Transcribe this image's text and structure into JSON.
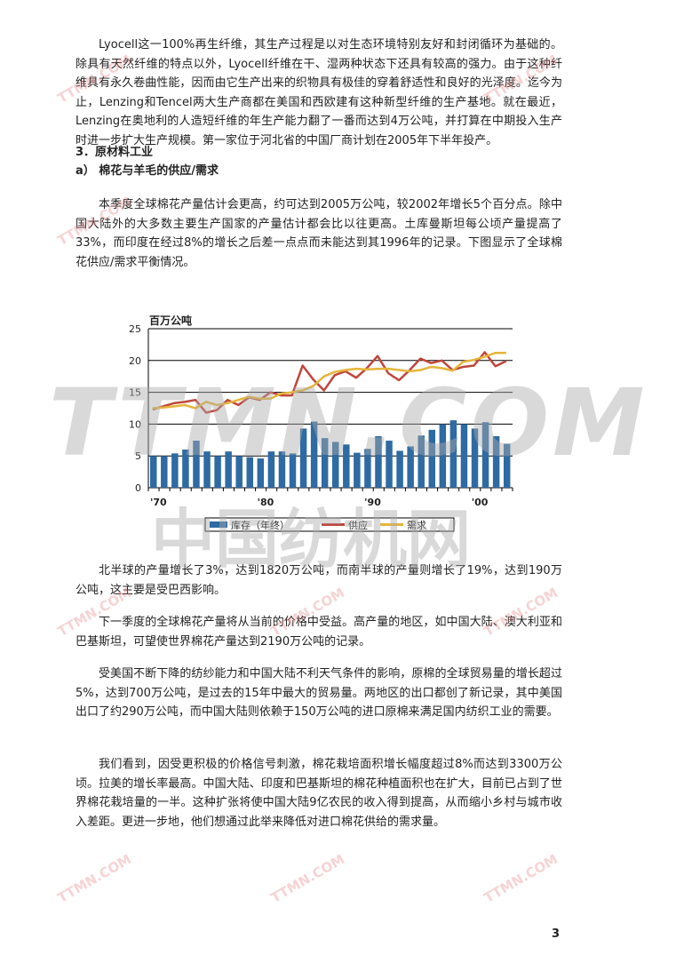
{
  "paragraphs": [
    "Lyocell这一100%再生纤维，其生产过程是以对生态环境特别友好和封闭循环为基础的。除具有天然纤维的特点以外，Lyocell纤维在干、湿两种状态下还具有较高的强力。由于这种纤维具有永久卷曲性能，因而由它生产出来的织物具有极佳的穿着舒适性和良好的光泽度。迄今为止，Lenzing和Tencel两大生产商都在美国和西欧建有这种新型纤维的生产基地。就在最近，Lenzing在奥地利的人造短纤维的年生产能力翻了一番而达到4万公吨，并打算在中期投入生产时进一步扩大生产规模。第一家位于河北省的中国厂商计划在2005年下半年投产。",
    "本季度全球棉花产量估计会更高，约可达到2005万公吨，较2002年增长5个百分点。除中国大陆外的大多数主要生产国家的产量估计都会比以往更高。土库曼斯坦每公顷产量提高了33%，而印度在经过8%的增长之后差一点点而未能达到其1996年的记录。下图显示了全球棉花供应/需求平衡情况。",
    "北半球的产量增长了3%，达到1820万公吨，而南半球的产量则增长了19%，达到190万公吨，这主要是受巴西影响。",
    "下一季度的全球棉花产量将从当前的价格中受益。高产量的地区，如中国大陆、澳大利亚和巴基斯坦，可望使世界棉花产量达到2190万公吨的记录。",
    "受美国不断下降的纺纱能力和中国大陆不利天气条件的影响，原棉的全球贸易量的增长超过5%，达到700万公吨，是过去的15年中最大的贸易量。两地区的出口都创了新记录，其中美国出口了约290万公吨，而中国大陆则依赖于150万公吨的进口原棉来满足国内纺织工业的需要。",
    "我们看到，因受更积极的价格信号刺激，棉花栽培面积增长幅度超过8%而达到3300万公顷。拉美的增长率最高。中国大陆、印度和巴基斯坦的棉花种植面积也在扩大，目前已占到了世界棉花栽培量的一半。这种扩张将使中国大陆9亿农民的收入得到提高，从而缩小乡村与城市收入差距。更进一步地，他们想通过此举来降低对进口棉花供给的需求量。"
  ],
  "headings": {
    "section": "3．原材料工业",
    "subsection": "a） 棉花与羊毛的供应/需求"
  },
  "page_number": "3",
  "watermarks": {
    "large_latin": "TTMN.COM",
    "large_chinese": "中国纺机网",
    "small": "TTMN.COM"
  },
  "chart_data": {
    "type": "bar+line",
    "unit_label": "百万公吨",
    "ylim": [
      0,
      25
    ],
    "yticks": [
      0,
      5,
      10,
      15,
      20,
      25
    ],
    "grid": true,
    "legend_position": "bottom",
    "x_tick_labels": [
      "'70",
      "'80",
      "'90",
      "'00"
    ],
    "x": [
      1970,
      1971,
      1972,
      1973,
      1974,
      1975,
      1976,
      1977,
      1978,
      1979,
      1980,
      1981,
      1982,
      1983,
      1984,
      1985,
      1986,
      1987,
      1988,
      1989,
      1990,
      1991,
      1992,
      1993,
      1994,
      1995,
      1996,
      1997,
      1998,
      1999,
      2000,
      2001,
      2002,
      2003
    ],
    "series": [
      {
        "name": "库存（年终）",
        "type": "bar",
        "color": "#2e6aa3",
        "values": [
          5,
          5,
          5.4,
          6,
          7.4,
          5.7,
          5,
          5.7,
          5,
          4.8,
          4.6,
          5.7,
          5.7,
          5.4,
          9.3,
          10.4,
          7.8,
          7.2,
          6.8,
          5.5,
          6.1,
          8.1,
          7.4,
          5.8,
          6.5,
          8.2,
          9.1,
          10,
          10.6,
          10,
          9.3,
          10.3,
          8.1,
          6.9
        ]
      },
      {
        "name": "供应",
        "type": "line",
        "color": "#c0463c",
        "values": [
          12.3,
          12.8,
          13.3,
          13.5,
          13.8,
          11.8,
          12.2,
          13.8,
          13,
          14.2,
          13.8,
          15,
          14.5,
          14.5,
          19.2,
          17,
          15.3,
          17.7,
          18.3,
          17.3,
          18.8,
          20.7,
          18,
          16.9,
          18.5,
          20.3,
          19.6,
          20,
          18.5,
          19,
          19.2,
          21.3,
          19.1,
          19.9
        ]
      },
      {
        "name": "需求",
        "type": "line",
        "color": "#e6b53a",
        "values": [
          12.5,
          12.6,
          12.8,
          13,
          12.5,
          13.5,
          13,
          13.3,
          13.8,
          14.3,
          14,
          14,
          14.8,
          15,
          15.3,
          16,
          17.5,
          18.2,
          18.5,
          18.7,
          18.6,
          18.7,
          18.7,
          18.5,
          18.3,
          18.5,
          19,
          18.8,
          18.4,
          19.8,
          20.1,
          20.6,
          21.2,
          21.2
        ]
      }
    ]
  }
}
